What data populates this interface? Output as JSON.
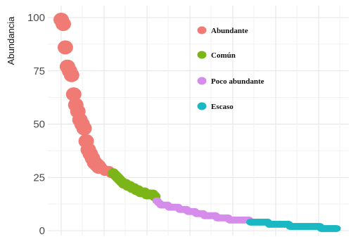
{
  "chart_data": {
    "type": "scatter",
    "title": "",
    "xlabel": "",
    "ylabel": "Abundancia",
    "ylim": [
      0,
      100
    ],
    "y_ticks": [
      0,
      25,
      50,
      75,
      100
    ],
    "grid": true,
    "legend_position": "top-right",
    "series": [
      {
        "name": "Abundante",
        "color": "#F07B75",
        "x": [
          1,
          2,
          3,
          4,
          5,
          6,
          7,
          8,
          9,
          10,
          11,
          12,
          13,
          14,
          15,
          16,
          17,
          18,
          19,
          20,
          21,
          22,
          23,
          24,
          25
        ],
        "values": [
          99,
          97,
          86,
          77,
          75,
          73,
          64,
          59,
          56,
          52,
          50,
          48,
          42,
          38,
          36,
          34,
          32,
          31,
          30,
          29,
          29,
          28,
          28,
          28,
          27
        ]
      },
      {
        "name": "Común",
        "color": "#7CB518",
        "x": [
          26,
          27,
          28,
          29,
          30,
          31,
          32,
          33,
          34,
          35,
          36,
          37,
          38,
          39,
          40,
          41,
          42,
          43,
          44,
          45,
          46
        ],
        "values": [
          27,
          26,
          25,
          24,
          23,
          22,
          22,
          21,
          21,
          20,
          20,
          19,
          19,
          18,
          18,
          18,
          17,
          17,
          17,
          17,
          16
        ]
      },
      {
        "name": "Poco abundante",
        "color": "#D58CEB",
        "x": [
          47,
          48,
          49,
          50,
          51,
          52,
          53,
          54,
          55,
          56,
          57,
          58,
          59,
          60,
          61,
          62,
          63,
          64,
          65,
          66,
          67,
          68,
          69,
          70,
          71,
          72,
          73,
          74,
          75,
          76,
          77,
          78,
          79,
          80,
          81,
          82,
          83,
          84,
          85,
          86,
          87,
          88,
          89,
          90,
          91
        ],
        "values": [
          14,
          13,
          12,
          12,
          12,
          12,
          11,
          11,
          11,
          11,
          11,
          10,
          10,
          10,
          10,
          9,
          9,
          9,
          9,
          8,
          8,
          8,
          8,
          7,
          7,
          7,
          7,
          7,
          7,
          6,
          6,
          6,
          6,
          6,
          6,
          5,
          5,
          5,
          5,
          5,
          5,
          5,
          5,
          5,
          5
        ]
      },
      {
        "name": "Escaso",
        "color": "#1AB8C3",
        "x": [
          92,
          93,
          94,
          95,
          96,
          97,
          98,
          99,
          100,
          101,
          102,
          103,
          104,
          105,
          106,
          107,
          108,
          109,
          110,
          111,
          112,
          113,
          114,
          115,
          116,
          117,
          118,
          119,
          120,
          121,
          122,
          123,
          124,
          125,
          126,
          127,
          128,
          129,
          130,
          131,
          132,
          133
        ],
        "values": [
          4,
          4,
          4,
          4,
          4,
          4,
          4,
          4,
          4,
          3,
          3,
          3,
          3,
          3,
          3,
          3,
          3,
          3,
          3,
          2,
          2,
          2,
          2,
          2,
          2,
          2,
          2,
          2,
          2,
          2,
          2,
          2,
          2,
          2,
          1,
          1,
          1,
          1,
          1,
          1,
          1,
          1
        ]
      }
    ]
  }
}
